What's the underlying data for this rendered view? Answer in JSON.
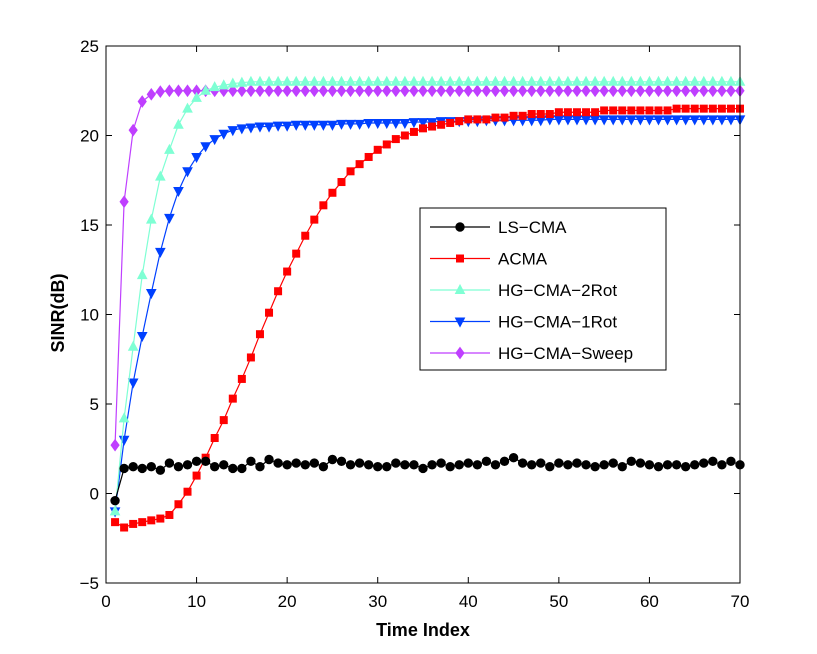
{
  "chart_data": {
    "type": "line",
    "title": "",
    "xlabel": "Time Index",
    "ylabel": "SINR(dB)",
    "xlim": [
      0,
      70
    ],
    "ylim": [
      -5,
      25
    ],
    "xticks": [
      "0",
      "10",
      "20",
      "30",
      "40",
      "50",
      "60",
      "70"
    ],
    "yticks": [
      "−5",
      "0",
      "5",
      "10",
      "15",
      "20",
      "25"
    ],
    "grid": false,
    "legend_position": "center-right",
    "x": [
      1,
      2,
      3,
      4,
      5,
      6,
      7,
      8,
      9,
      10,
      11,
      12,
      13,
      14,
      15,
      16,
      17,
      18,
      19,
      20,
      21,
      22,
      23,
      24,
      25,
      26,
      27,
      28,
      29,
      30,
      31,
      32,
      33,
      34,
      35,
      36,
      37,
      38,
      39,
      40,
      41,
      42,
      43,
      44,
      45,
      46,
      47,
      48,
      49,
      50,
      51,
      52,
      53,
      54,
      55,
      56,
      57,
      58,
      59,
      60,
      61,
      62,
      63,
      64,
      65,
      66,
      67,
      68,
      69,
      70
    ],
    "series": [
      {
        "name": "LS−CMA",
        "color": "#000000",
        "marker": "circle",
        "values": [
          -0.4,
          1.4,
          1.5,
          1.4,
          1.5,
          1.3,
          1.7,
          1.5,
          1.6,
          1.8,
          1.8,
          1.5,
          1.6,
          1.4,
          1.4,
          1.8,
          1.5,
          1.9,
          1.7,
          1.6,
          1.7,
          1.6,
          1.7,
          1.5,
          1.9,
          1.8,
          1.6,
          1.7,
          1.6,
          1.5,
          1.5,
          1.7,
          1.6,
          1.6,
          1.4,
          1.6,
          1.7,
          1.5,
          1.6,
          1.7,
          1.6,
          1.8,
          1.6,
          1.8,
          2.0,
          1.7,
          1.6,
          1.7,
          1.5,
          1.7,
          1.6,
          1.7,
          1.6,
          1.5,
          1.6,
          1.7,
          1.5,
          1.8,
          1.7,
          1.6,
          1.5,
          1.6,
          1.6,
          1.5,
          1.6,
          1.7,
          1.8,
          1.6,
          1.8,
          1.6
        ]
      },
      {
        "name": "ACMA",
        "color": "#ff0000",
        "marker": "square",
        "values": [
          -1.6,
          -1.9,
          -1.7,
          -1.6,
          -1.5,
          -1.4,
          -1.2,
          -0.6,
          0.1,
          1.0,
          2.0,
          3.1,
          4.1,
          5.3,
          6.4,
          7.6,
          8.9,
          10.1,
          11.3,
          12.4,
          13.4,
          14.4,
          15.3,
          16.1,
          16.8,
          17.4,
          18.0,
          18.4,
          18.8,
          19.2,
          19.5,
          19.8,
          20.0,
          20.2,
          20.4,
          20.5,
          20.6,
          20.7,
          20.8,
          20.9,
          20.9,
          20.9,
          21.0,
          21.0,
          21.1,
          21.1,
          21.2,
          21.2,
          21.2,
          21.3,
          21.3,
          21.3,
          21.3,
          21.3,
          21.4,
          21.4,
          21.4,
          21.4,
          21.4,
          21.4,
          21.4,
          21.4,
          21.5,
          21.5,
          21.5,
          21.5,
          21.5,
          21.5,
          21.5,
          21.5
        ]
      },
      {
        "name": "HG−CMA−2Rot",
        "color": "#7fffd4",
        "marker": "triangle-up",
        "values": [
          -1.0,
          4.2,
          8.2,
          12.2,
          15.3,
          17.7,
          19.2,
          20.6,
          21.5,
          22.1,
          22.5,
          22.7,
          22.8,
          22.9,
          22.95,
          23.0,
          23.0,
          23.0,
          23.0,
          23.0,
          23.0,
          23.0,
          23.0,
          23.0,
          23.0,
          23.0,
          23.0,
          23.0,
          23.0,
          23.0,
          23.0,
          23.0,
          23.0,
          23.0,
          23.0,
          23.0,
          23.0,
          23.0,
          23.0,
          23.0,
          23.0,
          23.0,
          23.0,
          23.0,
          23.0,
          23.0,
          23.0,
          23.0,
          23.0,
          23.0,
          23.0,
          23.0,
          23.0,
          23.0,
          23.0,
          23.0,
          23.0,
          23.0,
          23.0,
          23.0,
          23.0,
          23.0,
          23.0,
          23.0,
          23.0,
          23.0,
          23.0,
          23.0,
          23.0,
          23.0
        ]
      },
      {
        "name": "HG−CMA−1Rot",
        "color": "#0040ff",
        "marker": "triangle-down",
        "values": [
          -1.0,
          3.0,
          6.2,
          8.8,
          11.2,
          13.5,
          15.4,
          16.9,
          18.0,
          18.8,
          19.4,
          19.8,
          20.1,
          20.3,
          20.4,
          20.45,
          20.5,
          20.5,
          20.55,
          20.55,
          20.6,
          20.6,
          20.6,
          20.6,
          20.6,
          20.65,
          20.65,
          20.65,
          20.7,
          20.7,
          20.7,
          20.7,
          20.7,
          20.75,
          20.75,
          20.75,
          20.8,
          20.8,
          20.8,
          20.8,
          20.8,
          20.85,
          20.85,
          20.85,
          20.85,
          20.85,
          20.85,
          20.85,
          20.9,
          20.9,
          20.9,
          20.9,
          20.9,
          20.9,
          20.9,
          20.9,
          20.9,
          20.9,
          20.9,
          20.9,
          20.9,
          20.9,
          20.9,
          20.9,
          20.9,
          20.9,
          20.9,
          20.9,
          20.9,
          20.9
        ]
      },
      {
        "name": "HG−CMA−Sweep",
        "color": "#bf3fff",
        "marker": "diamond",
        "values": [
          2.7,
          16.3,
          20.3,
          21.9,
          22.3,
          22.45,
          22.5,
          22.5,
          22.5,
          22.5,
          22.5,
          22.5,
          22.5,
          22.5,
          22.5,
          22.5,
          22.5,
          22.5,
          22.5,
          22.5,
          22.5,
          22.5,
          22.5,
          22.5,
          22.5,
          22.5,
          22.5,
          22.5,
          22.5,
          22.5,
          22.5,
          22.5,
          22.5,
          22.5,
          22.5,
          22.5,
          22.5,
          22.5,
          22.5,
          22.5,
          22.5,
          22.5,
          22.5,
          22.5,
          22.5,
          22.5,
          22.5,
          22.5,
          22.5,
          22.5,
          22.5,
          22.5,
          22.5,
          22.5,
          22.5,
          22.5,
          22.5,
          22.5,
          22.5,
          22.5,
          22.5,
          22.5,
          22.5,
          22.5,
          22.5,
          22.5,
          22.5,
          22.5,
          22.5,
          22.5
        ]
      }
    ]
  }
}
